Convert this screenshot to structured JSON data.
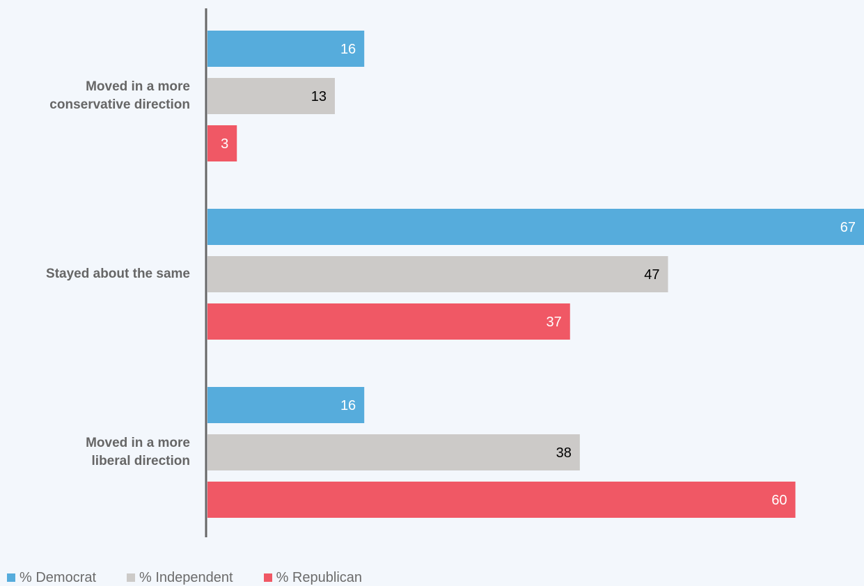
{
  "chart_data": {
    "type": "bar",
    "orientation": "horizontal",
    "categories": [
      "Moved in a more conservative direction",
      "Stayed about the same",
      "Moved in a more liberal direction"
    ],
    "category_lines": [
      [
        "Moved in a more",
        "conservative direction"
      ],
      [
        "Stayed about the same"
      ],
      [
        "Moved in a more",
        "liberal direction"
      ]
    ],
    "series": [
      {
        "name": "% Democrat",
        "color": "#56acdc",
        "label_color": "#ffffff",
        "values": [
          16,
          67,
          16
        ]
      },
      {
        "name": "% Independent",
        "color": "#cccac8",
        "label_color": "#000000",
        "values": [
          13,
          47,
          38
        ]
      },
      {
        "name": "% Republican",
        "color": "#f05865",
        "label_color": "#ffffff",
        "values": [
          3,
          37,
          60
        ]
      }
    ],
    "xlim": [
      0,
      67
    ],
    "legend_position": "bottom-left",
    "grid": false,
    "title": "",
    "xlabel": "",
    "ylabel": ""
  }
}
